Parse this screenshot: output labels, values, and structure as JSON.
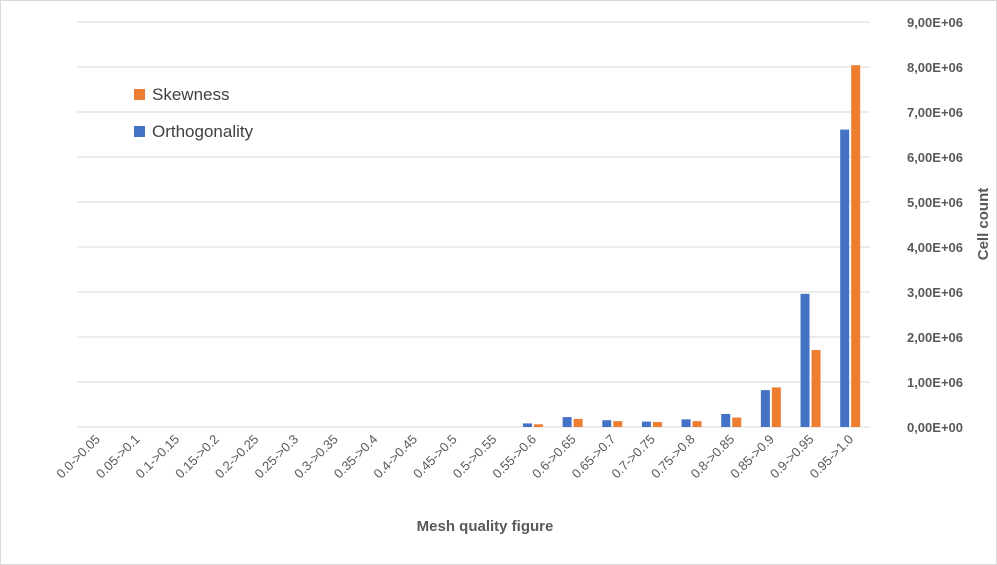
{
  "chart_data": {
    "type": "bar",
    "xlabel": "Mesh quality figure",
    "ylabel": "Cell count",
    "ylim": [
      0,
      9000000
    ],
    "yticks": [
      {
        "value": 0,
        "label": "0,00E+00"
      },
      {
        "value": 1000000,
        "label": "1,00E+06"
      },
      {
        "value": 2000000,
        "label": "2,00E+06"
      },
      {
        "value": 3000000,
        "label": "3,00E+06"
      },
      {
        "value": 4000000,
        "label": "4,00E+06"
      },
      {
        "value": 5000000,
        "label": "5,00E+06"
      },
      {
        "value": 6000000,
        "label": "6,00E+06"
      },
      {
        "value": 7000000,
        "label": "7,00E+06"
      },
      {
        "value": 8000000,
        "label": "8,00E+06"
      },
      {
        "value": 9000000,
        "label": "9,00E+06"
      }
    ],
    "y_axis_position": "right",
    "grid": true,
    "legend_position": "top-left",
    "categories": [
      "0.0->0.05",
      "0.05->0.1",
      "0.1->0.15",
      "0.15->0.2",
      "0.2->0.25",
      "0.25->0.3",
      "0.3->0.35",
      "0.35->0.4",
      "0.4->0.45",
      "0.45->0.5",
      "0.5->0.55",
      "0.55->0.6",
      "0.6->0.65",
      "0.65->0.7",
      "0.7->0.75",
      "0.75->0.8",
      "0.8->0.85",
      "0.85->0.9",
      "0.9->0.95",
      "0.95->1.0"
    ],
    "series": [
      {
        "name": "Orthogonality",
        "color": "#4472c4",
        "values": [
          0,
          0,
          0,
          0,
          0,
          0,
          0,
          0,
          0,
          0,
          0,
          80000,
          220000,
          150000,
          120000,
          170000,
          290000,
          820000,
          2960000,
          6610000
        ]
      },
      {
        "name": "Skewness",
        "color": "#ed7d31",
        "values": [
          0,
          0,
          0,
          0,
          0,
          0,
          0,
          0,
          0,
          0,
          0,
          60000,
          180000,
          130000,
          110000,
          130000,
          210000,
          880000,
          1710000,
          8040000
        ]
      }
    ],
    "legend_order": [
      "Skewness",
      "Orthogonality"
    ],
    "gridline_color": "#d9d9d9",
    "axis_text_color": "#595959"
  }
}
